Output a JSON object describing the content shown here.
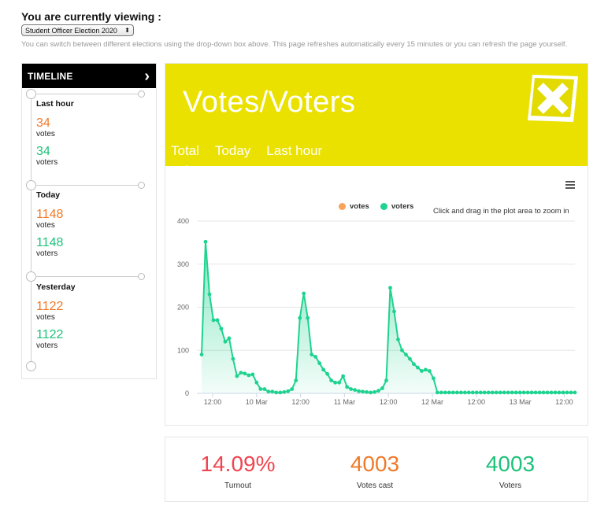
{
  "header": {
    "viewing_title": "You are currently viewing :",
    "election_selected": "Student Officer Election 2020",
    "help_text": "You can switch between different elections using the drop-down box above. This page refreshes automatically every 15 minutes or you can refresh the page yourself."
  },
  "timeline": {
    "title": "TIMELINE",
    "sections": [
      {
        "label": "Last hour",
        "votes": "34",
        "votes_caption": "votes",
        "voters": "34",
        "voters_caption": "voters"
      },
      {
        "label": "Today",
        "votes": "1148",
        "votes_caption": "votes",
        "voters": "1148",
        "voters_caption": "voters"
      },
      {
        "label": "Yesterday",
        "votes": "1122",
        "votes_caption": "votes",
        "voters": "1122",
        "voters_caption": "voters"
      }
    ]
  },
  "banner": {
    "title": "Votes/Voters",
    "tabs": [
      "Total",
      "Today",
      "Last hour"
    ],
    "active_tab": "Total"
  },
  "chart_data": {
    "type": "area",
    "zoom_hint": "Click and drag in the plot area to zoom in",
    "legend_placement": "top-center",
    "series": [
      {
        "name": "votes",
        "color": "#f7a35c",
        "values": []
      },
      {
        "name": "voters",
        "color": "#1ed38f",
        "values": [
          90,
          352,
          230,
          170,
          170,
          150,
          120,
          128,
          80,
          40,
          48,
          46,
          42,
          44,
          25,
          10,
          10,
          4,
          4,
          2,
          2,
          3,
          5,
          10,
          30,
          175,
          232,
          175,
          90,
          85,
          70,
          55,
          45,
          30,
          25,
          25,
          40,
          15,
          10,
          8,
          5,
          4,
          3,
          2,
          3,
          6,
          12,
          30,
          245,
          190,
          125,
          100,
          90,
          80,
          68,
          60,
          52,
          55,
          52,
          35,
          2,
          2,
          2,
          2,
          2,
          2,
          2,
          2,
          2,
          2,
          2,
          2,
          2,
          2,
          2,
          2,
          2,
          2,
          2,
          2,
          2,
          2,
          2,
          2,
          2,
          2,
          2,
          2,
          2,
          2,
          2,
          2,
          2,
          2,
          2,
          2
        ]
      }
    ],
    "ylim": [
      0,
      400
    ],
    "yticks": [
      "400",
      "300",
      "200",
      "100",
      "0"
    ],
    "xticks": [
      "12:00",
      "10 Mar",
      "12:00",
      "11 Mar",
      "12:00",
      "12 Mar",
      "12:00",
      "13 Mar",
      "12:00"
    ],
    "grid": true
  },
  "stats": {
    "turnout_value": "14.09%",
    "turnout_label": "Turnout",
    "votes_value": "4003",
    "votes_label": "Votes cast",
    "voters_value": "4003",
    "voters_label": "Voters"
  },
  "colors": {
    "accent": "#ebe100",
    "orange": "#f07a2a",
    "green": "#1ec27a",
    "red": "#f0454f"
  }
}
